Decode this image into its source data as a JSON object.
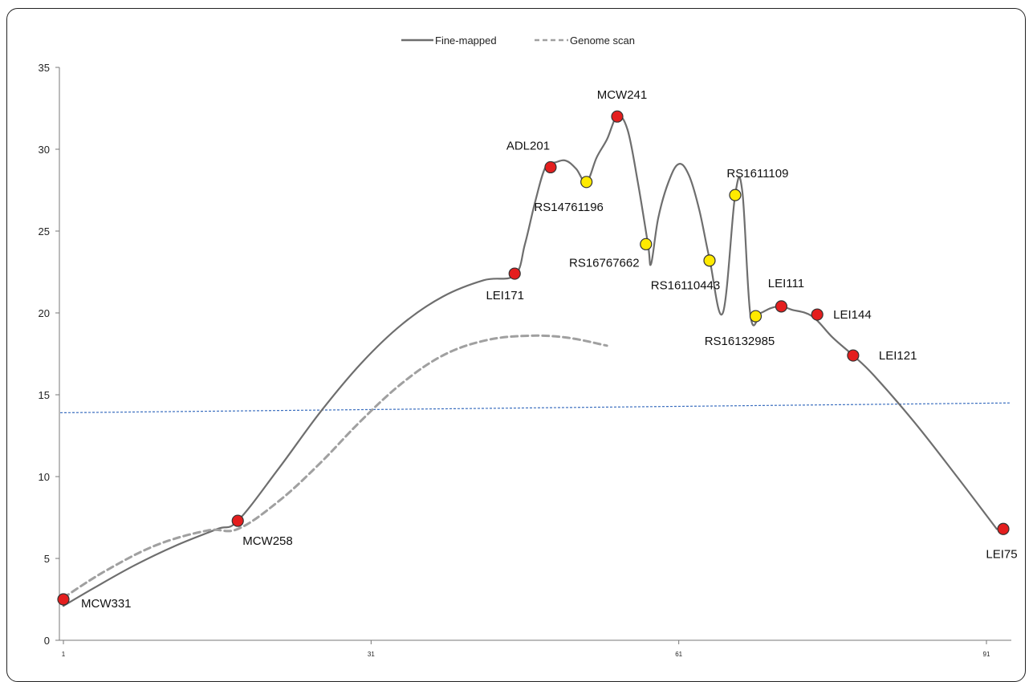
{
  "chart_data": {
    "type": "line",
    "title": "",
    "xlabel": "",
    "ylabel": "",
    "xlim": [
      1,
      92
    ],
    "ylim": [
      0,
      35
    ],
    "y_ticks": [
      0,
      5,
      10,
      15,
      20,
      25,
      30,
      35
    ],
    "x_ticks": [
      1,
      31,
      61,
      91
    ],
    "grid": false,
    "legend_position": "top-center",
    "series": [
      {
        "name": "Fine-mapped",
        "style": "solid",
        "color": "#6e6e6e",
        "points": [
          [
            1,
            2.1
          ],
          [
            4,
            3.2
          ],
          [
            8,
            4.6
          ],
          [
            12,
            5.8
          ],
          [
            16,
            6.8
          ],
          [
            18,
            7.3
          ],
          [
            22,
            10.5
          ],
          [
            26,
            13.9
          ],
          [
            30,
            16.9
          ],
          [
            34,
            19.3
          ],
          [
            38,
            21.0
          ],
          [
            42,
            22.0
          ],
          [
            45,
            22.3
          ],
          [
            46,
            24.2
          ],
          [
            47,
            26.8
          ],
          [
            48,
            28.9
          ],
          [
            49,
            29.2
          ],
          [
            50,
            29.3
          ],
          [
            51,
            28.8
          ],
          [
            52,
            28.0
          ],
          [
            53,
            29.5
          ],
          [
            54,
            30.6
          ],
          [
            55,
            32.0
          ],
          [
            56,
            31.2
          ],
          [
            57,
            28.0
          ],
          [
            58,
            24.2
          ],
          [
            58.3,
            23.0
          ],
          [
            59,
            25.8
          ],
          [
            60,
            28.0
          ],
          [
            61,
            29.1
          ],
          [
            62,
            28.4
          ],
          [
            63,
            26.3
          ],
          [
            64,
            23.3
          ],
          [
            65.3,
            20.0
          ],
          [
            66.5,
            27.2
          ],
          [
            67.2,
            27.4
          ],
          [
            68,
            19.8
          ],
          [
            69,
            20.0
          ],
          [
            70,
            20.3
          ],
          [
            71,
            20.4
          ],
          [
            72,
            20.2
          ],
          [
            74,
            19.8
          ],
          [
            76,
            18.5
          ],
          [
            78,
            17.4
          ],
          [
            80,
            16.2
          ],
          [
            84,
            13.3
          ],
          [
            88,
            10.1
          ],
          [
            92,
            6.8
          ]
        ]
      },
      {
        "name": "Genome scan",
        "style": "dashed",
        "color": "#a0a0a0",
        "points": [
          [
            1,
            2.6
          ],
          [
            5,
            4.2
          ],
          [
            10,
            5.8
          ],
          [
            15,
            6.7
          ],
          [
            18,
            6.8
          ],
          [
            22,
            8.5
          ],
          [
            26,
            10.8
          ],
          [
            30,
            13.4
          ],
          [
            34,
            15.7
          ],
          [
            38,
            17.4
          ],
          [
            42,
            18.3
          ],
          [
            46,
            18.6
          ],
          [
            50,
            18.5
          ],
          [
            54,
            18.0
          ]
        ]
      }
    ],
    "threshold": {
      "style": "dotted",
      "color": "#3a6ebf",
      "start": [
        1,
        13.9
      ],
      "end": [
        92,
        14.5
      ]
    },
    "markers": [
      {
        "label": "MCW331",
        "x": 1,
        "y": 2.5,
        "color": "#e41e1e"
      },
      {
        "label": "MCW258",
        "x": 18,
        "y": 7.3,
        "color": "#e41e1e"
      },
      {
        "label": "LEI171",
        "x": 45,
        "y": 22.4,
        "color": "#e41e1e"
      },
      {
        "label": "ADL201",
        "x": 48.5,
        "y": 28.9,
        "color": "#e41e1e"
      },
      {
        "label": "RS14761196",
        "x": 52,
        "y": 28.0,
        "color": "#ffea00"
      },
      {
        "label": "MCW241",
        "x": 55,
        "y": 32.0,
        "color": "#e41e1e"
      },
      {
        "label": "RS16767662",
        "x": 57.8,
        "y": 24.2,
        "color": "#ffea00"
      },
      {
        "label": "RS16110443",
        "x": 64,
        "y": 23.2,
        "color": "#ffea00"
      },
      {
        "label": "RS1611109",
        "x": 66.5,
        "y": 27.2,
        "color": "#ffea00"
      },
      {
        "label": "RS16132985",
        "x": 68.5,
        "y": 19.8,
        "color": "#ffea00"
      },
      {
        "label": "LEI111",
        "x": 71,
        "y": 20.4,
        "color": "#e41e1e"
      },
      {
        "label": "LEI144",
        "x": 74.5,
        "y": 19.9,
        "color": "#e41e1e"
      },
      {
        "label": "LEI121",
        "x": 78,
        "y": 17.4,
        "color": "#e41e1e"
      },
      {
        "label": "LEI75",
        "x": 93.5,
        "y": 6.8,
        "color": "#e41e1e"
      }
    ]
  }
}
